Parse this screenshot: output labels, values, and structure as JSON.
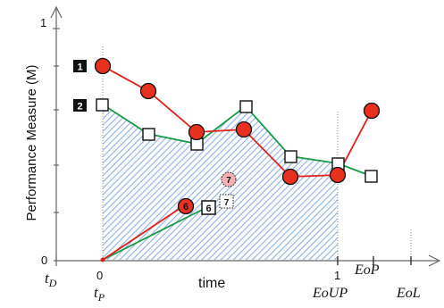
{
  "axes": {
    "y_label": "Performance Measure (M)",
    "x_label": "time",
    "y_tick_top": "1",
    "y_tick_bottom": "0",
    "x_tick_zero": "0",
    "x_tick_one": "1"
  },
  "time_marks": {
    "t_d": "t",
    "t_d_sub": "D",
    "t_p": "t",
    "t_p_sub": "P",
    "eoup": "EoUP",
    "eop": "EoP",
    "eol": "EoL"
  },
  "badges": {
    "badge_1": "1",
    "badge_2": "2",
    "label_6_circle": "6",
    "label_6_square": "6",
    "label_7_circle": "7",
    "label_7_square": "7"
  },
  "colors": {
    "red_series": "#e0201a",
    "green_series": "#1a9a4a",
    "hatch": "#7fa7e0",
    "axis": "#666666"
  }
}
